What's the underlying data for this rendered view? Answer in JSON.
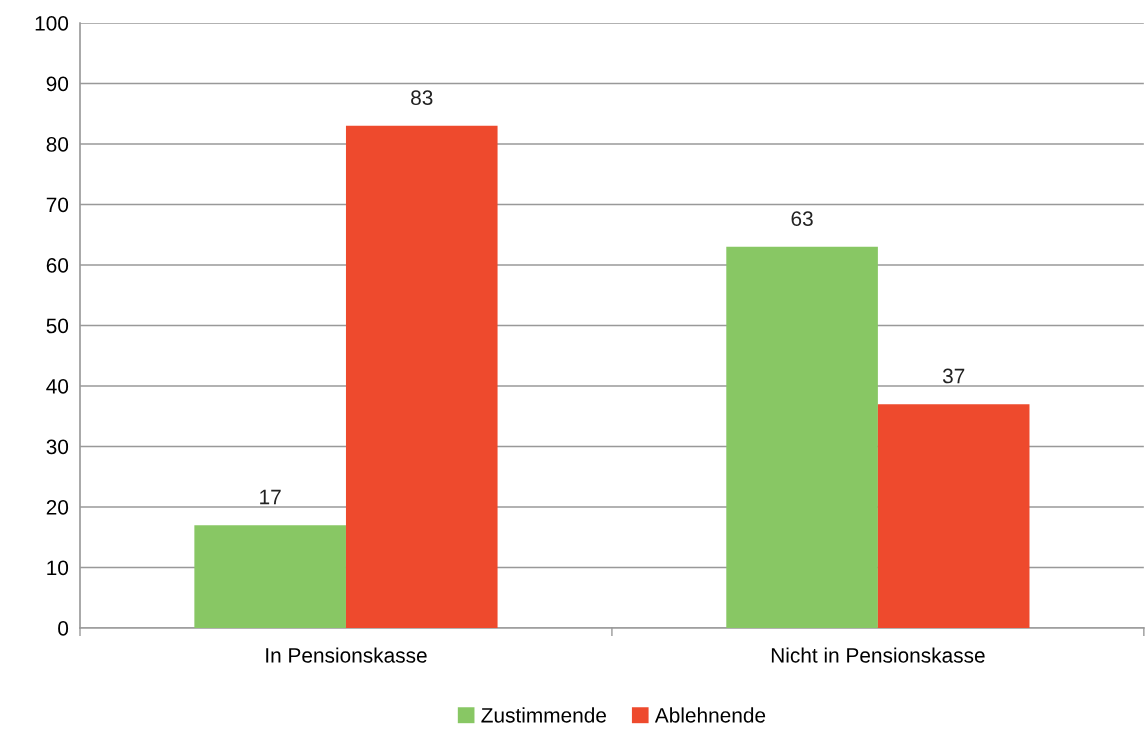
{
  "chart_data": {
    "type": "bar",
    "categories": [
      "In Pensionskasse",
      "Nicht in Pensionskasse"
    ],
    "series": [
      {
        "name": "Zustimmende",
        "color": "#88c764",
        "values": [
          17,
          63
        ]
      },
      {
        "name": "Ablehnende",
        "color": "#ee4a2d",
        "values": [
          83,
          37
        ]
      }
    ],
    "ylim": [
      0,
      100
    ],
    "yticks": [
      0,
      10,
      20,
      30,
      40,
      50,
      60,
      70,
      80,
      90,
      100
    ],
    "grid": "y",
    "legend": "bottom",
    "data_labels": true
  }
}
